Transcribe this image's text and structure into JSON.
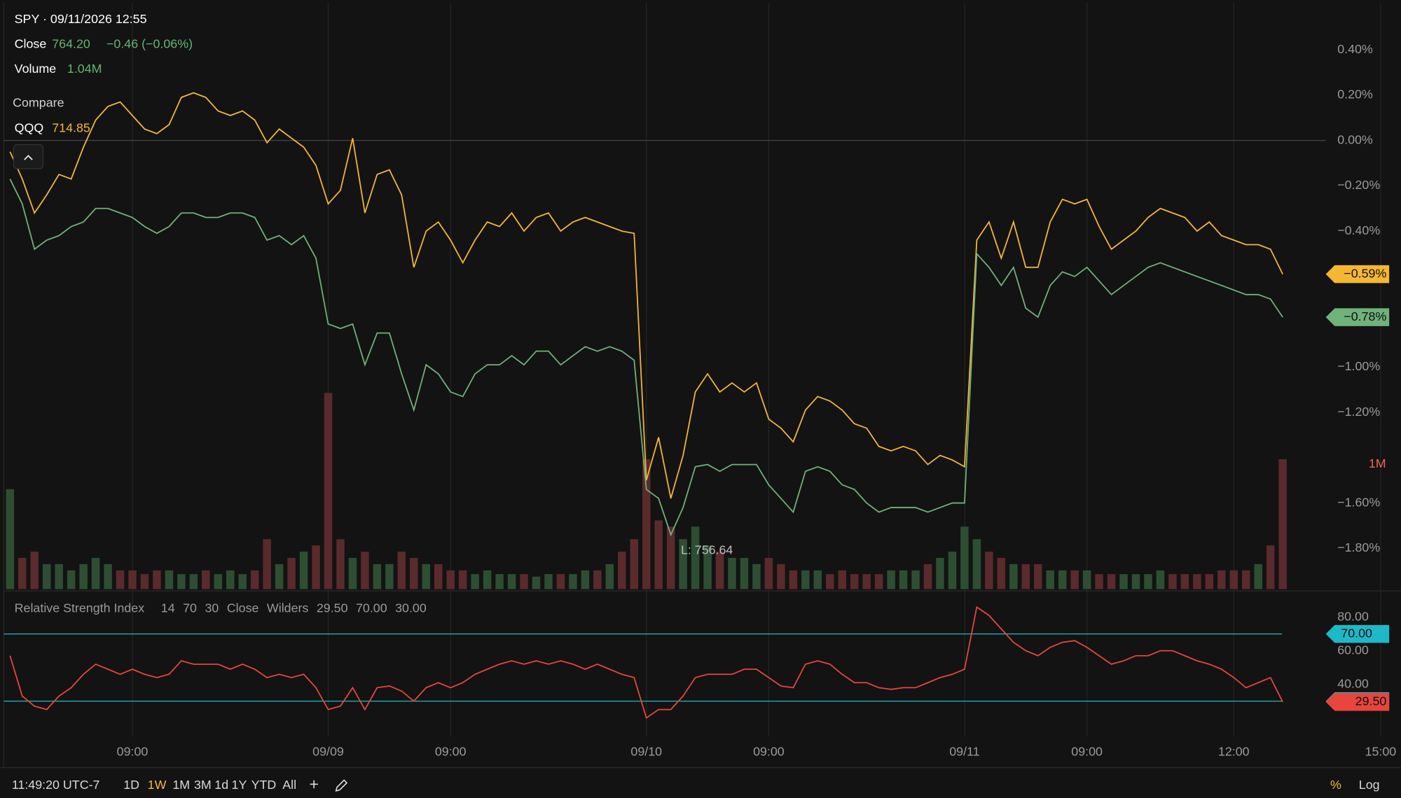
{
  "header": {
    "title": "SPY · 09/11/2026 12:55",
    "close_label": "Close",
    "close": "764.20",
    "change": "−0.46 (−0.06%)",
    "volume_label": "Volume",
    "volume": "1.04M",
    "compare_label": "Compare",
    "compare_value": "714.85",
    "low_label": "L: 756.64"
  },
  "chart_data": [
    {
      "type": "line",
      "categories": [
        null,
        null,
        null,
        null,
        null,
        null,
        null,
        null,
        null,
        null,
        "09:00",
        null,
        null,
        null,
        null,
        null,
        null,
        null,
        null,
        null,
        null,
        null,
        null,
        null,
        null,
        null,
        "09/09",
        null,
        null,
        null,
        null,
        null,
        null,
        null,
        null,
        null,
        "09:00",
        null,
        null,
        null,
        null,
        null,
        null,
        null,
        null,
        null,
        null,
        null,
        null,
        null,
        null,
        null,
        "09/10",
        null,
        null,
        null,
        null,
        null,
        null,
        null,
        null,
        null,
        "09:00",
        null,
        null,
        null,
        null,
        null,
        null,
        null,
        null,
        null,
        null,
        null,
        null,
        null,
        null,
        null,
        "09/11",
        null,
        null,
        null,
        null,
        null,
        null,
        null,
        null,
        null,
        "09:00",
        null,
        null,
        null,
        null,
        null,
        null,
        null,
        null,
        null,
        null,
        null,
        "12:00",
        null,
        null,
        null,
        null,
        null,
        null,
        null,
        null,
        null,
        null,
        null,
        "15:00"
      ],
      "series": [
        {
          "name": "QQQ",
          "color": "#f5b731",
          "last_label": "−0.59%",
          "values": [
            -0.05,
            -0.17,
            -0.32,
            -0.24,
            -0.15,
            -0.17,
            -0.03,
            0.09,
            0.15,
            0.17,
            0.11,
            0.05,
            0.03,
            0.07,
            0.19,
            0.21,
            0.19,
            0.13,
            0.11,
            0.13,
            0.09,
            -0.01,
            0.05,
            0.01,
            -0.03,
            -0.11,
            -0.28,
            -0.22,
            0.01,
            -0.32,
            -0.15,
            -0.13,
            -0.24,
            -0.56,
            -0.4,
            -0.36,
            -0.44,
            -0.54,
            -0.44,
            -0.36,
            -0.38,
            -0.32,
            -0.4,
            -0.34,
            -0.32,
            -0.4,
            -0.36,
            -0.34,
            -0.36,
            -0.38,
            -0.4,
            -0.41,
            -1.5,
            -1.31,
            -1.58,
            -1.39,
            -1.11,
            -1.03,
            -1.11,
            -1.07,
            -1.11,
            -1.07,
            -1.23,
            -1.27,
            -1.33,
            -1.19,
            -1.13,
            -1.15,
            -1.19,
            -1.25,
            -1.27,
            -1.35,
            -1.37,
            -1.35,
            -1.37,
            -1.43,
            -1.39,
            -1.41,
            -1.44,
            -0.44,
            -0.36,
            -0.52,
            -0.36,
            -0.56,
            -0.56,
            -0.36,
            -0.26,
            -0.28,
            -0.26,
            -0.38,
            -0.48,
            -0.44,
            -0.4,
            -0.34,
            -0.3,
            -0.32,
            -0.34,
            -0.4,
            -0.36,
            -0.42,
            -0.44,
            -0.46,
            -0.46,
            -0.48,
            -0.59,
            null,
            null,
            null,
            null,
            null,
            null,
            null,
            null
          ]
        },
        {
          "color": "#6fb27a",
          "last_label": "−0.78%",
          "values": [
            -0.17,
            -0.28,
            -0.48,
            -0.44,
            -0.42,
            -0.38,
            -0.36,
            -0.3,
            -0.3,
            -0.32,
            -0.34,
            -0.38,
            -0.41,
            -0.38,
            -0.32,
            -0.32,
            -0.34,
            -0.34,
            -0.32,
            -0.32,
            -0.34,
            -0.44,
            -0.42,
            -0.46,
            -0.42,
            -0.52,
            -0.81,
            -0.83,
            -0.81,
            -0.99,
            -0.85,
            -0.85,
            -1.03,
            -1.19,
            -0.99,
            -1.03,
            -1.11,
            -1.13,
            -1.03,
            -0.99,
            -0.99,
            -0.95,
            -0.99,
            -0.93,
            -0.93,
            -0.99,
            -0.95,
            -0.91,
            -0.93,
            -0.91,
            -0.93,
            -0.97,
            -1.54,
            -1.58,
            -1.74,
            -1.62,
            -1.44,
            -1.43,
            -1.46,
            -1.43,
            -1.43,
            -1.43,
            -1.52,
            -1.58,
            -1.64,
            -1.46,
            -1.44,
            -1.46,
            -1.52,
            -1.54,
            -1.6,
            -1.64,
            -1.62,
            -1.62,
            -1.62,
            -1.64,
            -1.62,
            -1.6,
            -1.6,
            -0.5,
            -0.56,
            -0.64,
            -0.56,
            -0.74,
            -0.78,
            -0.64,
            -0.58,
            -0.6,
            -0.56,
            -0.62,
            -0.68,
            -0.64,
            -0.6,
            -0.56,
            -0.54,
            -0.56,
            -0.58,
            -0.6,
            -0.62,
            -0.64,
            -0.66,
            -0.68,
            -0.68,
            -0.7,
            -0.78,
            null,
            null,
            null,
            null,
            null,
            null,
            null,
            null
          ]
        }
      ],
      "volume": {
        "up_color": "#2d4e33",
        "down_color": "#5a2a2d",
        "label_color": "#f0625a",
        "values": [
          0.8,
          0.25,
          0.3,
          0.2,
          0.2,
          0.15,
          0.2,
          0.25,
          0.2,
          0.15,
          0.15,
          0.12,
          0.15,
          0.15,
          0.12,
          0.12,
          0.15,
          0.12,
          0.15,
          0.12,
          0.15,
          0.4,
          0.2,
          0.25,
          0.3,
          0.35,
          1.57,
          0.4,
          0.25,
          0.3,
          0.2,
          0.2,
          0.3,
          0.25,
          0.2,
          0.2,
          0.15,
          0.15,
          0.12,
          0.15,
          0.12,
          0.12,
          0.12,
          0.1,
          0.12,
          0.12,
          0.12,
          0.15,
          0.15,
          0.2,
          0.3,
          0.4,
          1.04,
          0.55,
          0.5,
          0.4,
          0.5,
          0.35,
          0.3,
          0.25,
          0.25,
          0.2,
          0.25,
          0.2,
          0.15,
          0.15,
          0.15,
          0.12,
          0.15,
          0.12,
          0.12,
          0.12,
          0.15,
          0.15,
          0.15,
          0.2,
          0.25,
          0.3,
          0.5,
          0.4,
          0.3,
          0.25,
          0.2,
          0.2,
          0.2,
          0.15,
          0.15,
          0.15,
          0.15,
          0.12,
          0.12,
          0.12,
          0.12,
          0.12,
          0.15,
          0.12,
          0.12,
          0.12,
          0.12,
          0.15,
          0.15,
          0.15,
          0.2,
          0.35,
          1.04,
          null,
          null,
          null,
          null,
          null,
          null,
          null,
          null
        ],
        "ylim": [
          0,
          4.68
        ],
        "yticks": [
          {
            "value": 1,
            "label": "1M"
          }
        ]
      },
      "ylim": [
        -1.98,
        0.6
      ],
      "yticks": [
        {
          "value": 0.4,
          "label": "0.40%"
        },
        {
          "value": 0.2,
          "label": "0.20%"
        },
        {
          "value": 0,
          "label": "0.00%"
        },
        {
          "value": -0.2,
          "label": "−0.20%"
        },
        {
          "value": -0.4,
          "label": "−0.40%"
        },
        {
          "value": -1.0,
          "label": "−1.00%"
        },
        {
          "value": -1.2,
          "label": "−1.20%"
        },
        {
          "value": -1.6,
          "label": "−1.60%"
        },
        {
          "value": -1.8,
          "label": "−1.80%"
        }
      ],
      "baseline": 0,
      "grid": true
    },
    {
      "type": "line",
      "title": "Relative Strength Index",
      "params": [
        14,
        70,
        30,
        "Close",
        "Wilders"
      ],
      "series": [
        {
          "color": "#e8453c",
          "last_label": "29.50",
          "values": [
            57,
            33,
            27,
            25,
            33,
            38,
            46,
            52,
            49,
            46,
            49,
            46,
            44,
            46,
            54,
            52,
            52,
            52,
            49,
            52,
            49,
            44,
            46,
            44,
            46,
            38,
            25,
            27,
            38,
            25,
            38,
            39,
            36,
            30,
            38,
            41,
            38,
            41,
            46,
            49,
            52,
            54,
            52,
            54,
            52,
            54,
            52,
            49,
            52,
            49,
            46,
            44,
            20,
            25,
            25,
            33,
            44,
            46,
            46,
            46,
            49,
            49,
            44,
            39,
            38,
            52,
            54,
            52,
            46,
            41,
            41,
            38,
            37,
            38,
            38,
            41,
            44,
            46,
            49,
            86,
            81,
            73,
            65,
            60,
            57,
            62,
            65,
            66,
            62,
            57,
            52,
            54,
            57,
            57,
            60,
            60,
            57,
            54,
            52,
            49,
            44,
            38,
            41,
            44,
            29.5,
            null,
            null,
            null,
            null,
            null,
            null,
            null,
            null
          ]
        }
      ],
      "levels": [
        {
          "value": 70,
          "label": "70.00"
        },
        {
          "value": 30,
          "label": "30.00"
        }
      ],
      "level_color": "#1fb8c8",
      "ylim": [
        9,
        94
      ],
      "yticks": [
        {
          "value": 40,
          "label": "40.00"
        },
        {
          "value": 60,
          "label": "60.00"
        },
        {
          "value": 80,
          "label": "80.00"
        }
      ]
    }
  ],
  "toolbar": {
    "time": "11:49:20 UTC-7",
    "ranges": [
      "1D",
      "1W",
      "1M",
      "3M",
      "1d",
      "1Y",
      "YTD",
      "All"
    ],
    "active_range": "1W",
    "plus": "+",
    "percent": "%",
    "log": "Log"
  }
}
